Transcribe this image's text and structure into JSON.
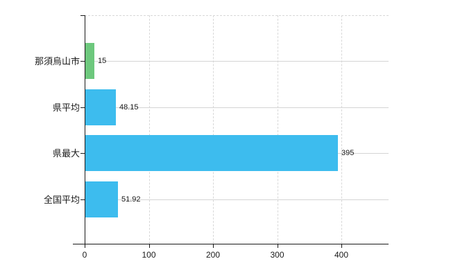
{
  "chart_data": {
    "type": "bar",
    "orientation": "horizontal",
    "title": "",
    "xlabel": "",
    "ylabel": "",
    "categories": [
      "那須烏山市",
      "県平均",
      "県最大",
      "全国平均"
    ],
    "values": [
      15,
      48.15,
      395,
      51.92
    ],
    "value_labels": [
      "15",
      "48.15",
      "395",
      "51.92"
    ],
    "bar_colors": [
      "#6dc87d",
      "#3dbcee",
      "#3dbcee",
      "#3dbcee"
    ],
    "x_ticks": [
      0,
      100,
      200,
      300,
      400
    ],
    "x_tick_labels": [
      "0",
      "100",
      "200",
      "300",
      "400"
    ],
    "xlim": [
      0,
      473
    ],
    "grid": true,
    "legend": false
  },
  "colors": {
    "background": "#ffffff",
    "grid": "#d6d6d6",
    "axis": "#1a1a1a",
    "text": "#1a1a1a",
    "bar_green": "#6dc87d",
    "bar_blue": "#3dbcee"
  }
}
